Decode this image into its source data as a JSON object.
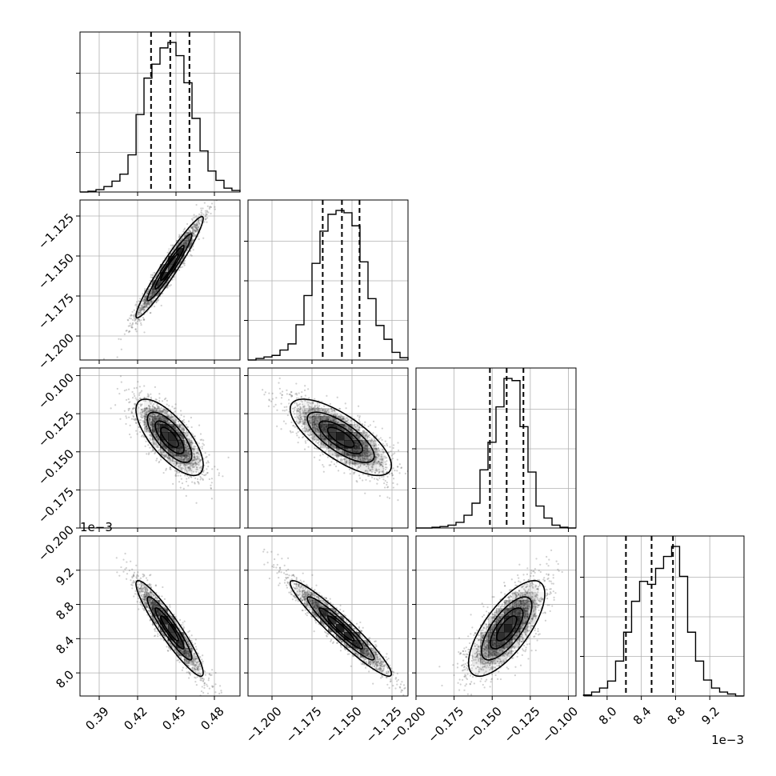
{
  "chart_data": {
    "type": "corner",
    "grid": true,
    "parameters": [
      {
        "id": "p1",
        "range": [
          0.375,
          0.5
        ],
        "ticks": [
          0.39,
          0.42,
          0.45,
          0.48
        ],
        "tick_labels": [
          "0.39",
          "0.42",
          "0.45",
          "0.48"
        ],
        "quantiles": [
          0.4305,
          0.4455,
          0.4605
        ],
        "hist_edges": [
          0.375,
          0.3812,
          0.3875,
          0.3937,
          0.4,
          0.4062,
          0.4125,
          0.4188,
          0.425,
          0.4312,
          0.4375,
          0.4437,
          0.45,
          0.4562,
          0.4625,
          0.4688,
          0.475,
          0.4812,
          0.4875,
          0.4937,
          0.5
        ],
        "hist_counts": [
          0,
          1,
          3,
          7,
          14,
          23,
          48,
          100,
          147,
          165,
          186,
          193,
          176,
          141,
          95,
          53,
          27,
          15,
          5,
          2
        ]
      },
      {
        "id": "p2",
        "range": [
          -1.215,
          -1.115
        ],
        "ticks": [
          -1.2,
          -1.175,
          -1.15,
          -1.125
        ],
        "tick_labels": [
          "−1.200",
          "−1.175",
          "−1.150",
          "−1.125"
        ],
        "quantiles": [
          -1.1683,
          -1.1563,
          -1.1453
        ],
        "hist_edges": [
          -1.215,
          -1.21,
          -1.205,
          -1.2,
          -1.195,
          -1.19,
          -1.185,
          -1.18,
          -1.175,
          -1.17,
          -1.165,
          -1.16,
          -1.155,
          -1.15,
          -1.145,
          -1.14,
          -1.135,
          -1.13,
          -1.125,
          -1.12,
          -1.115
        ],
        "hist_counts": [
          0,
          2,
          4,
          6,
          13,
          21,
          46,
          84,
          126,
          168,
          190,
          195,
          192,
          175,
          128,
          80,
          45,
          27,
          10,
          3
        ]
      },
      {
        "id": "p3",
        "range": [
          -0.2,
          -0.095
        ],
        "ticks": [
          -0.2,
          -0.175,
          -0.15,
          -0.125,
          -0.1
        ],
        "tick_labels": [
          "−0.200",
          "−0.175",
          "−0.150",
          "−0.125",
          "−0.100"
        ],
        "quantiles": [
          -0.1515,
          -0.1405,
          -0.1295
        ],
        "hist_edges": [
          -0.2,
          -0.19475,
          -0.1895,
          -0.18425,
          -0.179,
          -0.17375,
          -0.1685,
          -0.16325,
          -0.158,
          -0.15275,
          -0.1475,
          -0.14225,
          -0.137,
          -0.13175,
          -0.1265,
          -0.12125,
          -0.116,
          -0.11075,
          -0.1055,
          -0.10025,
          -0.095
        ],
        "hist_counts": [
          0,
          0,
          1,
          2,
          4,
          8,
          18,
          35,
          82,
          121,
          171,
          211,
          208,
          143,
          79,
          31,
          14,
          4,
          1,
          0
        ]
      },
      {
        "id": "p4",
        "range": [
          7.73,
          9.6
        ],
        "ticks": [
          8.0,
          8.4,
          8.8,
          9.2
        ],
        "tick_labels": [
          "8.0",
          "8.4",
          "8.8",
          "9.2"
        ],
        "scale_label": "1e−3",
        "quantiles": [
          8.22,
          8.52,
          8.77
        ],
        "hist_edges": [
          7.725,
          7.819,
          7.912,
          8.006,
          8.099,
          8.193,
          8.286,
          8.38,
          8.473,
          8.567,
          8.66,
          8.754,
          8.847,
          8.941,
          9.034,
          9.128,
          9.221,
          9.315,
          9.408,
          9.502,
          9.595
        ],
        "hist_counts": [
          1,
          4,
          8,
          15,
          35,
          64,
          95,
          115,
          112,
          128,
          140,
          150,
          120,
          64,
          35,
          16,
          8,
          4,
          2,
          0
        ]
      }
    ],
    "pairs": [
      {
        "x": "p1",
        "y": "p2",
        "mean": [
          0.445,
          -1.157
        ],
        "sd": [
          0.0127,
          0.0153
        ],
        "rho": 0.96
      },
      {
        "x": "p1",
        "y": "p3",
        "mean": [
          0.445,
          -0.1405
        ],
        "sd": [
          0.0127,
          0.0121
        ],
        "rho": -0.72
      },
      {
        "x": "p2",
        "y": "p3",
        "mean": [
          -1.157,
          -0.1405
        ],
        "sd": [
          0.0153,
          0.0121
        ],
        "rho": -0.74
      },
      {
        "x": "p1",
        "y": "p4",
        "mean": [
          0.445,
          8.52
        ],
        "sd": [
          0.0127,
          0.27
        ],
        "rho": -0.93
      },
      {
        "x": "p2",
        "y": "p4",
        "mean": [
          -1.157,
          8.52
        ],
        "sd": [
          0.0153,
          0.27
        ],
        "rho": -0.95
      },
      {
        "x": "p3",
        "y": "p4",
        "mean": [
          -0.1405,
          8.52
        ],
        "sd": [
          0.0121,
          0.27
        ],
        "rho": 0.72
      }
    ],
    "contour_levels_sigma": [
      0.5,
      1.0,
      1.5,
      2.0
    ],
    "hist2d_bins": 20,
    "scatter_samples_per_panel": 2000,
    "colors": {
      "line": "#000000",
      "grid": "#b0b0b0",
      "scatter": "#555555",
      "cell": "#000000",
      "contour_fill": "#ffffff"
    }
  }
}
